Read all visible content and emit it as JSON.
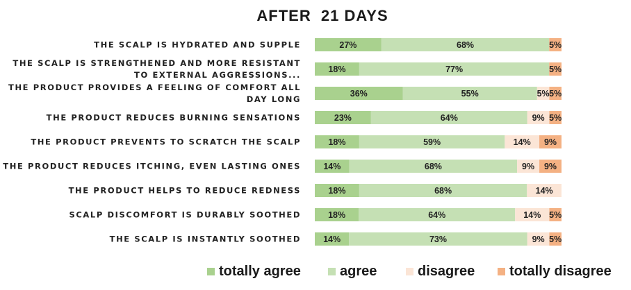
{
  "chart_data": {
    "type": "bar",
    "stacked": true,
    "orientation": "horizontal",
    "percent_scale": true,
    "title": "AFTER  21 DAYS",
    "categories": [
      [
        "THE SCALP IS HYDRATED AND SUPPLE"
      ],
      [
        "THE SCALP IS STRENGTHENED AND MORE RESISTANT",
        "TO EXTERNAL AGGRESSIONS..."
      ],
      [
        "THE PRODUCT PROVIDES A FEELING OF COMFORT ALL",
        "DAY LONG"
      ],
      [
        "THE PRODUCT REDUCES BURNING SENSATIONS"
      ],
      [
        "THE PRODUCT PREVENTS TO SCRATCH THE SCALP"
      ],
      [
        "THE PRODUCT REDUCES ITCHING, EVEN LASTING ONES"
      ],
      [
        "THE PRODUCT HELPS TO REDUCE REDNESS"
      ],
      [
        "SCALP DISCOMFORT IS DURABLY SOOTHED"
      ],
      [
        "THE SCALP IS INSTANTLY SOOTHED"
      ]
    ],
    "series": [
      {
        "name": "totally agree",
        "color": "#a9d18e",
        "values": [
          27,
          18,
          36,
          23,
          18,
          14,
          18,
          18,
          14
        ],
        "labels": [
          "27%",
          "18%",
          "36%",
          "23%",
          "18%",
          "14%",
          "18%",
          "18%",
          "14%"
        ]
      },
      {
        "name": "agree",
        "color": "#c5e0b4",
        "values": [
          68,
          77,
          55,
          64,
          59,
          68,
          68,
          64,
          73
        ],
        "labels": [
          "68%",
          "77%",
          "55%",
          "64%",
          "59%",
          "68%",
          "68%",
          "64%",
          "73%"
        ]
      },
      {
        "name": "disagree",
        "color": "#fbe5d6",
        "values": [
          0,
          0,
          5,
          9,
          14,
          9,
          14,
          14,
          9
        ],
        "labels": [
          "",
          "",
          "5%",
          "9%",
          "14%",
          "9%",
          "14%",
          "14%",
          "9%"
        ]
      },
      {
        "name": "totally disagree",
        "color": "#f4b183",
        "values": [
          5,
          5,
          5,
          5,
          9,
          9,
          0,
          5,
          5
        ],
        "labels": [
          "5%",
          "5%",
          "5%",
          "5%",
          "9%",
          "9%",
          "",
          "5%",
          "5%"
        ]
      }
    ],
    "legend_position": "bottom",
    "grid": false
  }
}
